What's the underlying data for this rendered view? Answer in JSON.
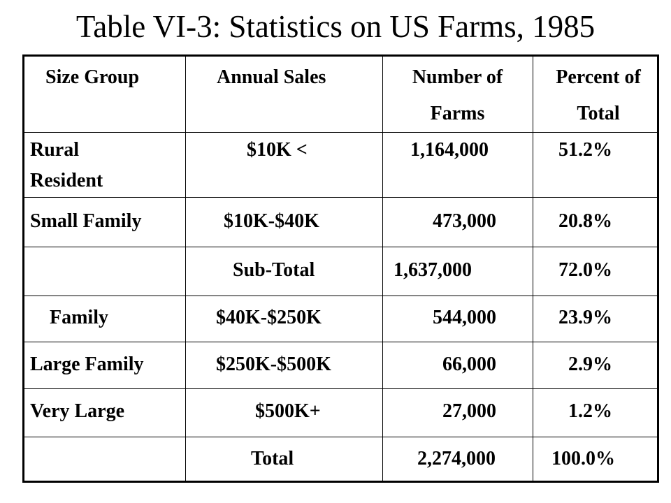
{
  "title": "Table VI-3: Statistics on US Farms, 1985",
  "table": {
    "headers": [
      {
        "line1": "Size Group",
        "line2": ""
      },
      {
        "line1": "Annual Sales",
        "line2": ""
      },
      {
        "line1": "Number of",
        "line2": "Farms"
      },
      {
        "line1": "Percent of",
        "line2": "Total"
      }
    ],
    "rows": [
      {
        "group_line1": "Rural",
        "group_line2": "Resident",
        "sales": "$10K <",
        "farms": "1,164,000",
        "percent": "51.2%"
      },
      {
        "group_line1": "Small Family",
        "group_line2": "",
        "sales": "$10K-$40K",
        "farms": "473,000",
        "percent": "20.8%"
      },
      {
        "group_line1": "",
        "group_line2": "",
        "sales": "Sub-Total",
        "farms": "1,637,000",
        "percent": "72.0%"
      },
      {
        "group_line1": "Family",
        "group_line2": "",
        "sales": "$40K-$250K",
        "farms": "544,000",
        "percent": "23.9%"
      },
      {
        "group_line1": "Large Family",
        "group_line2": "",
        "sales": "$250K-$500K",
        "farms": "66,000",
        "percent": "2.9%"
      },
      {
        "group_line1": "Very Large",
        "group_line2": "",
        "sales": "$500K+",
        "farms": "27,000",
        "percent": "1.2%"
      },
      {
        "group_line1": "",
        "group_line2": "",
        "sales": "Total",
        "farms": "2,274,000",
        "percent": "100.0%"
      }
    ]
  }
}
